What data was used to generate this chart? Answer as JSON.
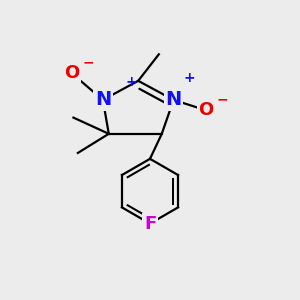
{
  "bg_color": "#ececec",
  "line_color": "#000000",
  "bond_lw": 1.6,
  "atom_colors": {
    "N": "#1010ff",
    "O": "#ee0000",
    "F": "#cc00cc",
    "C": "#000000",
    "plus": "#1010ff",
    "minus": "#ee0000"
  },
  "font_sizes": {
    "N": 14,
    "O": 13,
    "F": 13,
    "charge": 10,
    "methyl": 11
  }
}
